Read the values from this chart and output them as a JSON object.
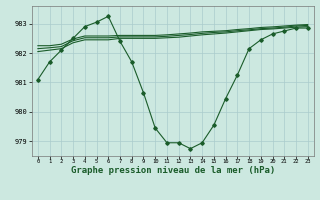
{
  "background_color": "#cce8e0",
  "grid_color": "#aacccc",
  "line_color": "#1a5c2a",
  "marker_color": "#1a5c2a",
  "title": "Graphe pression niveau de la mer (hPa)",
  "title_fontsize": 6.5,
  "xlim": [
    -0.5,
    23.5
  ],
  "ylim": [
    978.5,
    983.6
  ],
  "yticks": [
    979,
    980,
    981,
    982,
    983
  ],
  "xticks": [
    0,
    1,
    2,
    3,
    4,
    5,
    6,
    7,
    8,
    9,
    10,
    11,
    12,
    13,
    14,
    15,
    16,
    17,
    18,
    19,
    20,
    21,
    22,
    23
  ],
  "series1_x": [
    0,
    1,
    2,
    3,
    4,
    5,
    6,
    7,
    8,
    9,
    10,
    11,
    12,
    13,
    14,
    15,
    16,
    17,
    18,
    19,
    20,
    21,
    22,
    23
  ],
  "series1_y": [
    981.1,
    981.7,
    982.1,
    982.5,
    982.9,
    983.05,
    983.25,
    982.4,
    981.7,
    980.65,
    979.45,
    978.95,
    978.95,
    978.75,
    978.95,
    979.55,
    980.45,
    981.25,
    982.15,
    982.45,
    982.65,
    982.75,
    982.85,
    982.85
  ],
  "series2_x": [
    0,
    1,
    2,
    3,
    4,
    5,
    6,
    7,
    8,
    9,
    10,
    11,
    12,
    13,
    14,
    15,
    16,
    17,
    18,
    19,
    20,
    21,
    22,
    23
  ],
  "series2_y": [
    982.05,
    982.1,
    982.15,
    982.35,
    982.45,
    982.45,
    982.45,
    982.5,
    982.5,
    982.5,
    982.5,
    982.52,
    982.54,
    982.58,
    982.62,
    982.65,
    982.68,
    982.72,
    982.76,
    982.8,
    982.82,
    982.85,
    982.88,
    982.9
  ],
  "series3_x": [
    0,
    1,
    2,
    3,
    4,
    5,
    6,
    7,
    8,
    9,
    10,
    11,
    12,
    13,
    14,
    15,
    16,
    17,
    18,
    19,
    20,
    21,
    22,
    23
  ],
  "series3_y": [
    982.15,
    982.18,
    982.22,
    982.42,
    982.52,
    982.52,
    982.52,
    982.55,
    982.55,
    982.55,
    982.55,
    982.57,
    982.6,
    982.63,
    982.67,
    982.7,
    982.72,
    982.76,
    982.79,
    982.83,
    982.85,
    982.88,
    982.92,
    982.94
  ],
  "series4_x": [
    0,
    1,
    2,
    3,
    4,
    5,
    6,
    7,
    8,
    9,
    10,
    11,
    12,
    13,
    14,
    15,
    16,
    17,
    18,
    19,
    20,
    21,
    22,
    23
  ],
  "series4_y": [
    982.25,
    982.25,
    982.3,
    982.48,
    982.58,
    982.58,
    982.58,
    982.6,
    982.6,
    982.6,
    982.6,
    982.62,
    982.65,
    982.68,
    982.72,
    982.74,
    982.76,
    982.8,
    982.83,
    982.87,
    982.89,
    982.92,
    982.95,
    982.97
  ]
}
